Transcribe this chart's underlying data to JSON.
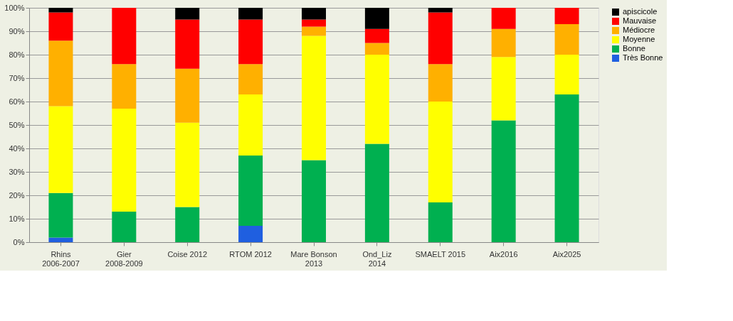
{
  "chart_data": {
    "type": "bar",
    "stacked": true,
    "categories": [
      "Rhins 2006-2007",
      "Gier 2008-2009",
      "Coise 2012",
      "RTOM 2012",
      "Mare Bonson 2013",
      "Ond_Liz 2014",
      "SMAELT 2015",
      "Aix2016",
      "Aix2025"
    ],
    "series": [
      {
        "name": "Très Bonne",
        "color": "#1f5fe0",
        "values": [
          2,
          0,
          0,
          7,
          0,
          0,
          0,
          0,
          0
        ]
      },
      {
        "name": "Bonne",
        "color": "#00b050",
        "values": [
          19,
          13,
          15,
          30,
          35,
          42,
          17,
          52,
          63
        ]
      },
      {
        "name": "Moyenne",
        "color": "#ffff00",
        "values": [
          37,
          44,
          36,
          26,
          53,
          38,
          43,
          27,
          17
        ]
      },
      {
        "name": "Médiocre",
        "color": "#ffb000",
        "values": [
          28,
          19,
          23,
          13,
          4,
          5,
          16,
          12,
          13
        ]
      },
      {
        "name": "Mauvaise",
        "color": "#ff0000",
        "values": [
          12,
          24,
          21,
          19,
          3,
          6,
          22,
          9,
          7
        ]
      },
      {
        "name": "apiscicole",
        "color": "#000000",
        "values": [
          2,
          0,
          5,
          5,
          5,
          9,
          2,
          0,
          0
        ]
      }
    ],
    "ylim": [
      0,
      100
    ],
    "yticks": [
      {
        "value": 0,
        "label": "0%"
      },
      {
        "value": 10,
        "label": "10%"
      },
      {
        "value": 20,
        "label": "20%"
      },
      {
        "value": 30,
        "label": "30%"
      },
      {
        "value": 40,
        "label": "40%"
      },
      {
        "value": 50,
        "label": "50%"
      },
      {
        "value": 60,
        "label": "60%"
      },
      {
        "value": 70,
        "label": "70%"
      },
      {
        "value": 80,
        "label": "80%"
      },
      {
        "value": 90,
        "label": "90%"
      },
      {
        "value": 100,
        "label": "100%"
      }
    ],
    "grid": "y",
    "legend": "right"
  }
}
